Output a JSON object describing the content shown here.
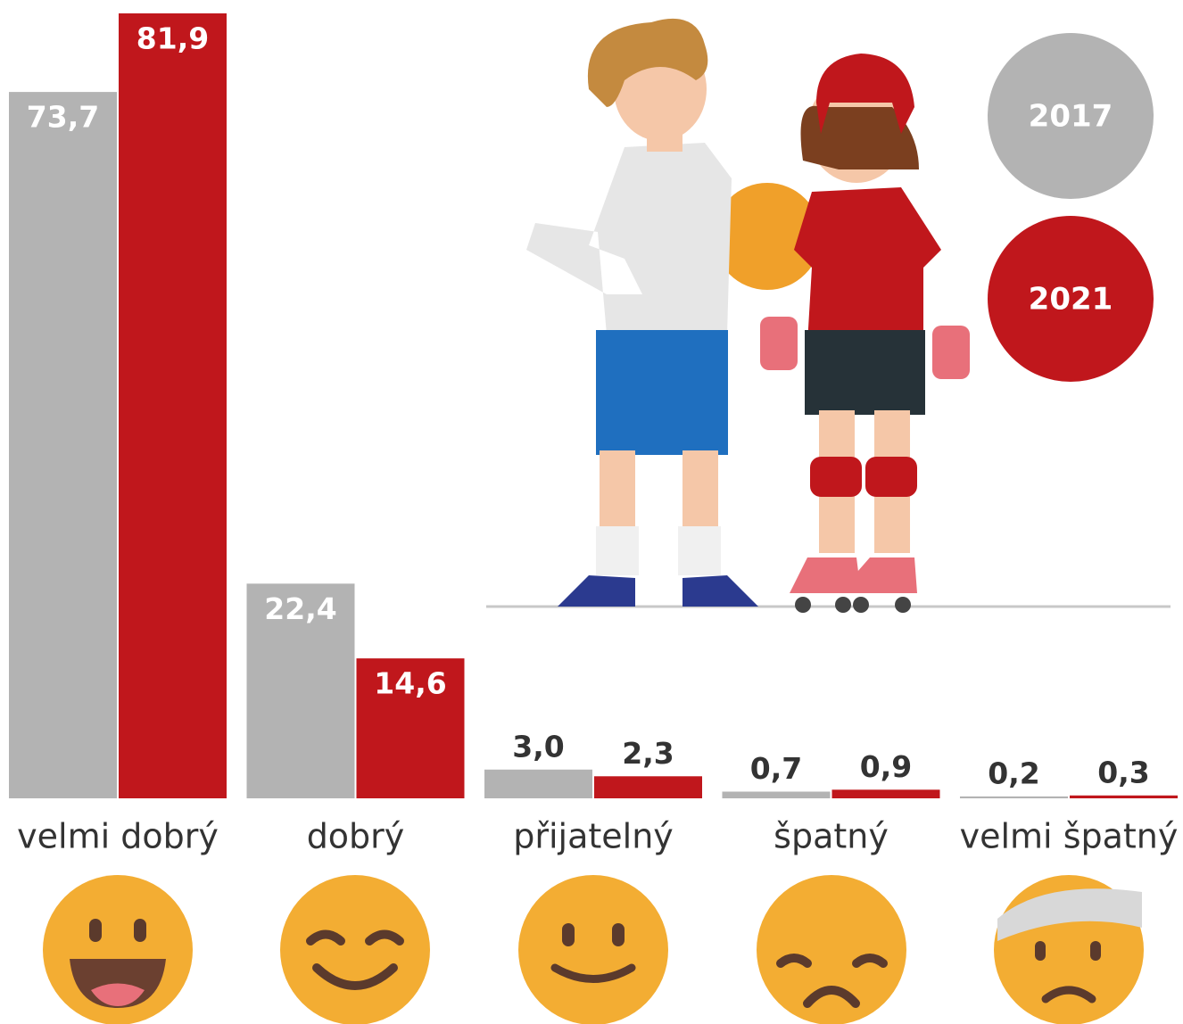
{
  "chart_data": {
    "type": "bar",
    "categories": [
      "velmi dobrý",
      "dobrý",
      "přijatelný",
      "špatný",
      "velmi špatný"
    ],
    "series": [
      {
        "name": "2017",
        "color": "#b3b3b3",
        "values": [
          73.7,
          22.4,
          3.0,
          0.7,
          0.2
        ],
        "value_labels": [
          "73,7",
          "22,4",
          "3,0",
          "0,7",
          "0,2"
        ]
      },
      {
        "name": "2021",
        "color": "#c0171c",
        "values": [
          81.9,
          14.6,
          2.3,
          0.9,
          0.3
        ],
        "value_labels": [
          "81,9",
          "14,6",
          "2,3",
          "0,9",
          "0,3"
        ]
      }
    ]
  }
}
